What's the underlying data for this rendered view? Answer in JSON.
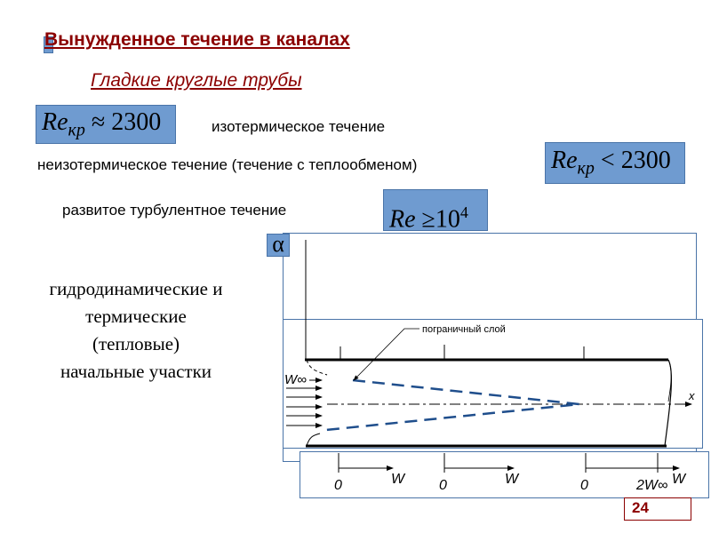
{
  "title": "Вынужденное течение в каналах",
  "subtitle": "Гладкие круглые трубы",
  "formulas": [
    {
      "lhs": "Re",
      "sub": "кр",
      "op": "≈",
      "rhs": "2300"
    },
    {
      "lhs": "Re",
      "sub": "кр",
      "op": "<",
      "rhs": "2300"
    },
    {
      "lhs": "Re",
      "op": "≥",
      "rhs": "10",
      "sup": "4"
    }
  ],
  "labels": {
    "isothermal": "изотермическое течение",
    "nonisothermal": "неизотермическое течение (течение с теплообменом)",
    "turbulent": "развитое турбулентное течение"
  },
  "alpha": "α",
  "side_text": [
    "гидродинамические и",
    "термические",
    "(тепловые)",
    "начальные участки"
  ],
  "diagram": {
    "boundary_layer": "пограничный слой",
    "w_inf": "W∞",
    "x_axis": "x",
    "profile_axes": [
      {
        "zero": "0",
        "label": "W"
      },
      {
        "zero": "0",
        "label": "W"
      },
      {
        "zero": "0",
        "mark": "2W∞",
        "label": "W"
      }
    ]
  },
  "page_number": "24",
  "colors": {
    "accent": "#6f9bd0",
    "title": "#8b0000",
    "boundary": "#1f4e8c"
  }
}
